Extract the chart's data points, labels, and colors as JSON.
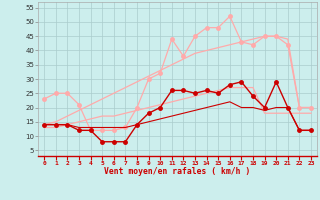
{
  "x": [
    0,
    1,
    2,
    3,
    4,
    5,
    6,
    7,
    8,
    9,
    10,
    11,
    12,
    13,
    14,
    15,
    16,
    17,
    18,
    19,
    20,
    21,
    22,
    23
  ],
  "pink_zigzag": [
    23,
    25,
    25,
    21,
    12,
    12,
    12,
    13,
    20,
    30,
    32,
    44,
    38,
    45,
    48,
    48,
    52,
    43,
    42,
    45,
    45,
    42,
    20,
    20
  ],
  "pink_upper": [
    14,
    15,
    17,
    19,
    21,
    23,
    25,
    27,
    29,
    31,
    33,
    35,
    37,
    39,
    40,
    41,
    42,
    43,
    44,
    45,
    45,
    44,
    20,
    20
  ],
  "pink_lower": [
    13,
    13,
    14,
    15,
    16,
    17,
    17,
    18,
    19,
    20,
    21,
    22,
    23,
    24,
    25,
    26,
    27,
    27,
    27,
    18,
    18,
    18,
    18,
    18
  ],
  "dark_zigzag": [
    14,
    14,
    14,
    12,
    12,
    8,
    8,
    8,
    14,
    18,
    20,
    26,
    26,
    25,
    26,
    25,
    28,
    29,
    24,
    20,
    29,
    20,
    12,
    12
  ],
  "dark_line": [
    14,
    14,
    14,
    13,
    13,
    13,
    13,
    13,
    14,
    15,
    16,
    17,
    18,
    19,
    20,
    21,
    22,
    20,
    20,
    19,
    20,
    20,
    12,
    12
  ],
  "bg_color": "#cceeed",
  "grid_color": "#aacccc",
  "dark_color": "#cc0000",
  "pink_color": "#ffaaaa",
  "xlabel": "Vent moyen/en rafales ( km/h )",
  "yticks": [
    5,
    10,
    15,
    20,
    25,
    30,
    35,
    40,
    45,
    50,
    55
  ],
  "xlim": [
    -0.5,
    23.5
  ],
  "ylim": [
    3,
    57
  ]
}
